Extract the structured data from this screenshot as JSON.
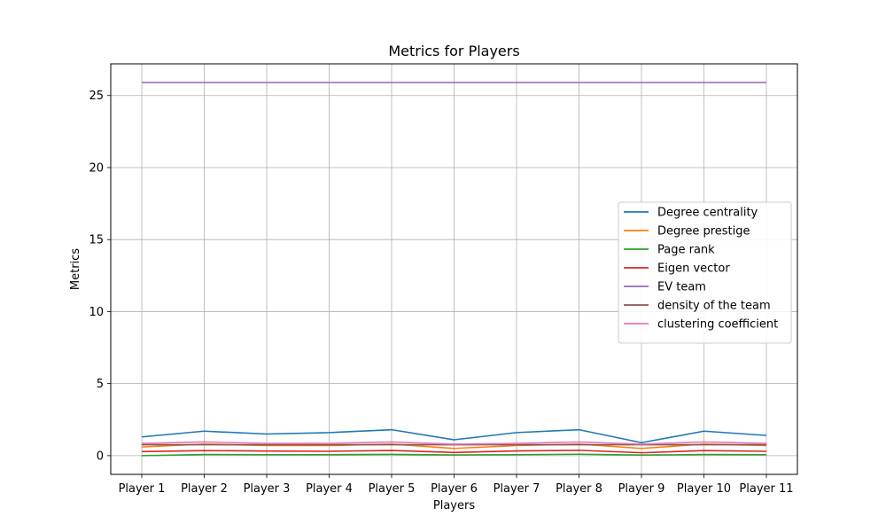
{
  "chart_data": {
    "type": "line",
    "title": "Metrics for Players",
    "xlabel": "Players",
    "ylabel": "Metrics",
    "categories": [
      "Player 1",
      "Player 2",
      "Player 3",
      "Player 4",
      "Player 5",
      "Player 6",
      "Player 7",
      "Player 8",
      "Player 9",
      "Player 10",
      "Player 11"
    ],
    "ylim": [
      -1.3,
      27.2
    ],
    "yticks": [
      0,
      5,
      10,
      15,
      20,
      25
    ],
    "grid": true,
    "legend_position": "center-right",
    "series": [
      {
        "name": "Degree centrality",
        "color": "#1f77b4",
        "values": [
          1.3,
          1.7,
          1.5,
          1.6,
          1.8,
          1.1,
          1.6,
          1.8,
          0.9,
          1.7,
          1.4
        ]
      },
      {
        "name": "Degree prestige",
        "color": "#ff7f0e",
        "values": [
          0.6,
          0.8,
          0.7,
          0.7,
          0.8,
          0.5,
          0.7,
          0.8,
          0.5,
          0.8,
          0.7
        ]
      },
      {
        "name": "Page rank",
        "color": "#2ca02c",
        "values": [
          0.0,
          0.08,
          0.07,
          0.07,
          0.09,
          0.05,
          0.07,
          0.1,
          0.04,
          0.08,
          0.07
        ]
      },
      {
        "name": "Eigen vector",
        "color": "#d62728",
        "values": [
          0.28,
          0.35,
          0.32,
          0.3,
          0.36,
          0.22,
          0.33,
          0.37,
          0.2,
          0.35,
          0.3
        ]
      },
      {
        "name": "EV team",
        "color": "#9467bd",
        "values": [
          25.9,
          25.9,
          25.9,
          25.9,
          25.9,
          25.9,
          25.9,
          25.9,
          25.9,
          25.9,
          25.9
        ]
      },
      {
        "name": "density of the team",
        "color": "#8c564b",
        "values": [
          0.76,
          0.76,
          0.76,
          0.76,
          0.76,
          0.76,
          0.76,
          0.76,
          0.76,
          0.76,
          0.76
        ]
      },
      {
        "name": "clustering coefficient",
        "color": "#e377c2",
        "values": [
          0.85,
          0.95,
          0.85,
          0.85,
          0.95,
          0.8,
          0.85,
          0.95,
          0.8,
          0.95,
          0.85
        ]
      }
    ]
  }
}
